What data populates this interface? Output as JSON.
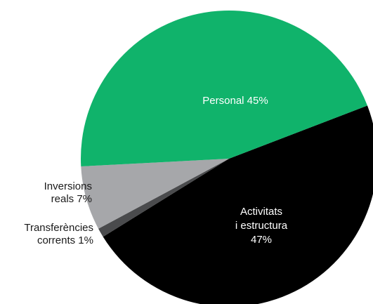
{
  "chart_data": {
    "type": "pie",
    "title": "",
    "slices": [
      {
        "name": "Personal",
        "value_label": "45%",
        "value": 45,
        "color": "#10b36b",
        "text_color": "#ffffff"
      },
      {
        "name": "Activitats i estructura",
        "value_label": "47%",
        "value": 47,
        "color": "#000000",
        "text_color": "#ffffff"
      },
      {
        "name": "Transferències corrents",
        "value_label": "1%",
        "value": 1,
        "color": "#4a4b4d",
        "text_color": "#1a1a1a"
      },
      {
        "name": "Inversions reals",
        "value_label": "7%",
        "value": 7,
        "color": "#a6a7aa",
        "text_color": "#1a1a1a"
      }
    ],
    "labels": {
      "personal": "Personal 45%",
      "activitats_line1": "Activitats",
      "activitats_line2": "i estructura",
      "activitats_line3": "47%",
      "inversions_line1": "Inversions",
      "inversions_line2": "reals 7%",
      "transfer_line1": "Transferències",
      "transfer_line2": "corrents 1%"
    }
  }
}
